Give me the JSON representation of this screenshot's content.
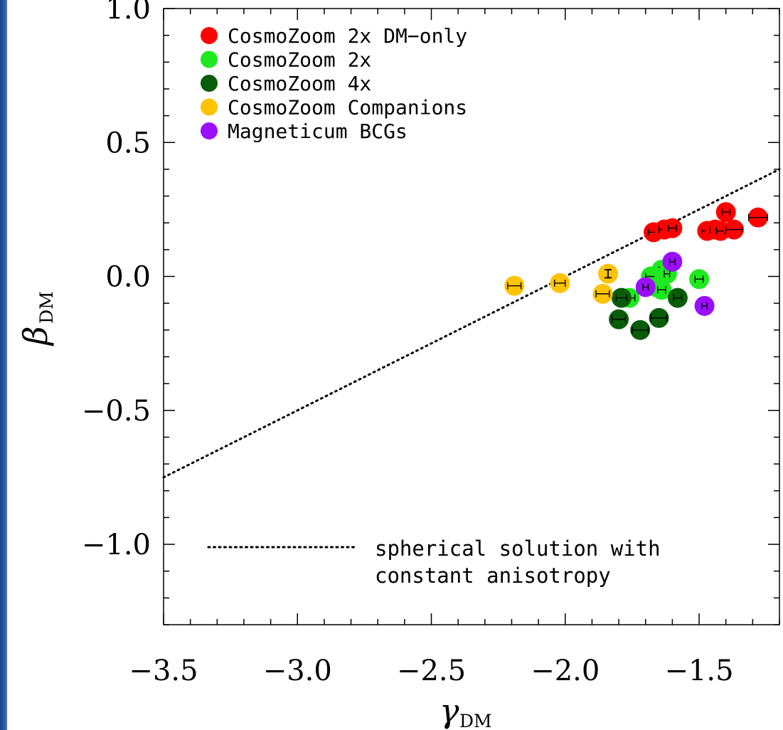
{
  "chart_data": {
    "type": "scatter",
    "xlabel": "γ",
    "xlabel_sub": "DM",
    "ylabel": "β",
    "ylabel_sub": "DM",
    "xlim": [
      -3.5,
      -1.2
    ],
    "ylim": [
      -1.3,
      1.0
    ],
    "xticks": [
      -3.5,
      -3.0,
      -2.5,
      -2.0,
      -1.5
    ],
    "xtick_labels": [
      "−3.5",
      "−3.0",
      "−2.5",
      "−2.0",
      "−1.5"
    ],
    "yticks": [
      1.0,
      0.5,
      0.0,
      -0.5,
      -1.0
    ],
    "ytick_labels": [
      "1.0",
      "0.5",
      "0.0",
      "−0.5",
      "−1.0"
    ],
    "grid": false,
    "legend_position": "top-left",
    "series": [
      {
        "name": "CosmoZoom 2x DM−only",
        "color": "#ff0000",
        "points": [
          {
            "x": -1.67,
            "y": 0.165,
            "xerr": 0.02
          },
          {
            "x": -1.63,
            "y": 0.175,
            "xerr": 0.02
          },
          {
            "x": -1.6,
            "y": 0.18,
            "xerr": 0.015
          },
          {
            "x": -1.47,
            "y": 0.17,
            "xerr": 0.02
          },
          {
            "x": -1.44,
            "y": 0.175,
            "xerr": 0.02
          },
          {
            "x": -1.42,
            "y": 0.17,
            "xerr": 0.015
          },
          {
            "x": -1.4,
            "y": 0.24,
            "xerr": 0.015
          },
          {
            "x": -1.37,
            "y": 0.175,
            "xerr": 0.03
          },
          {
            "x": -1.28,
            "y": 0.22,
            "xerr": 0.035
          }
        ]
      },
      {
        "name": "CosmoZoom 2x",
        "color": "#1ee81e",
        "points": [
          {
            "x": -1.76,
            "y": -0.08,
            "xerr": 0.02
          },
          {
            "x": -1.68,
            "y": 0.0,
            "xerr": 0.02
          },
          {
            "x": -1.66,
            "y": -0.04,
            "xerr": 0.02
          },
          {
            "x": -1.64,
            "y": 0.025,
            "xerr": 0.01
          },
          {
            "x": -1.62,
            "y": 0.01,
            "xerr": 0.01
          },
          {
            "x": -1.64,
            "y": -0.05,
            "xerr": 0.015
          },
          {
            "x": -1.5,
            "y": -0.01,
            "xerr": 0.015
          }
        ]
      },
      {
        "name": "CosmoZoom 4x",
        "color": "#0a5c0a",
        "points": [
          {
            "x": -1.79,
            "y": -0.08,
            "xerr": 0.02
          },
          {
            "x": -1.8,
            "y": -0.16,
            "xerr": 0.025
          },
          {
            "x": -1.72,
            "y": -0.2,
            "xerr": 0.03
          },
          {
            "x": -1.65,
            "y": -0.155,
            "xerr": 0.03
          },
          {
            "x": -1.58,
            "y": -0.08,
            "xerr": 0.015
          }
        ]
      },
      {
        "name": "CosmoZoom Companions",
        "color": "#ffc300",
        "points": [
          {
            "x": -2.19,
            "y": -0.035,
            "xerr": 0.025
          },
          {
            "x": -2.02,
            "y": -0.025,
            "xerr": 0.02
          },
          {
            "x": -1.84,
            "y": 0.01,
            "xerr": 0.0,
            "yerr": 0.015
          },
          {
            "x": -1.86,
            "y": -0.065,
            "xerr": 0.025
          }
        ]
      },
      {
        "name": "Magneticum BCGs",
        "color": "#9b0fff",
        "points": [
          {
            "x": -1.7,
            "y": -0.04,
            "xerr": 0.01
          },
          {
            "x": -1.6,
            "y": 0.055,
            "xerr": 0.01
          },
          {
            "x": -1.48,
            "y": -0.11,
            "xerr": 0.01
          }
        ]
      }
    ],
    "reference_line": {
      "label_line1": "spherical solution with",
      "label_line2": "constant anisotropy",
      "points": [
        [
          -3.5,
          -0.75
        ],
        [
          -1.2,
          0.4
        ]
      ],
      "style": "dotted",
      "color": "#000000"
    }
  }
}
